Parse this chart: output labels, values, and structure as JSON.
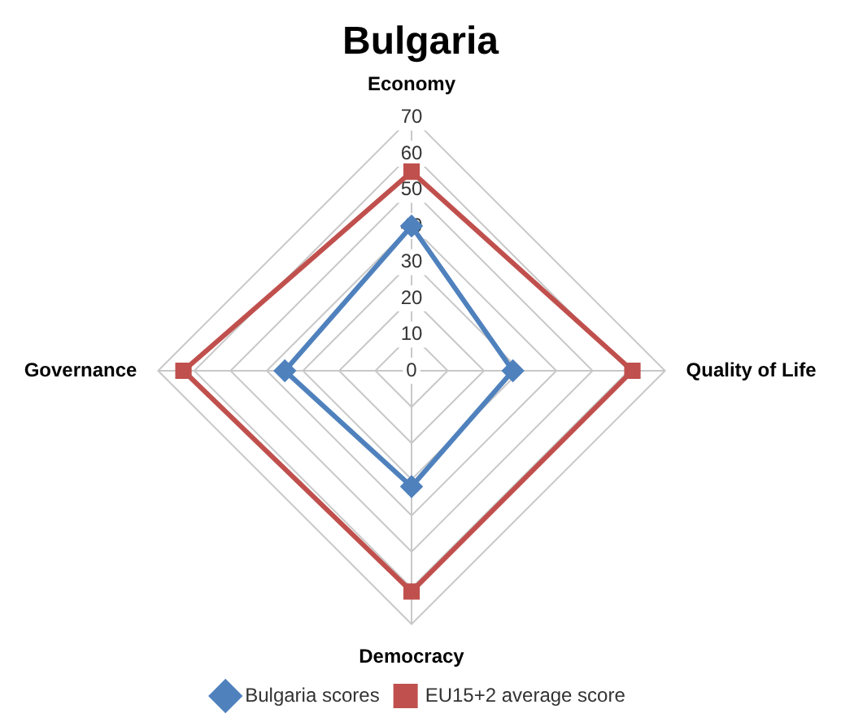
{
  "chart_data": {
    "type": "radar",
    "title": "Bulgaria",
    "categories": [
      "Economy",
      "Quality of Life",
      "Democracy",
      "Governance"
    ],
    "series": [
      {
        "name": "Bulgaria scores",
        "color": "#4f81bd",
        "marker": "diamond",
        "values": [
          40,
          28,
          32,
          35
        ]
      },
      {
        "name": "EU15+2 average score",
        "color": "#c0504d",
        "marker": "square",
        "values": [
          55,
          61,
          61,
          63
        ]
      }
    ],
    "ylim": [
      0,
      70
    ],
    "yticks": [
      0,
      10,
      20,
      30,
      40,
      50,
      60,
      70
    ],
    "grid": true,
    "legend": "bottom"
  }
}
